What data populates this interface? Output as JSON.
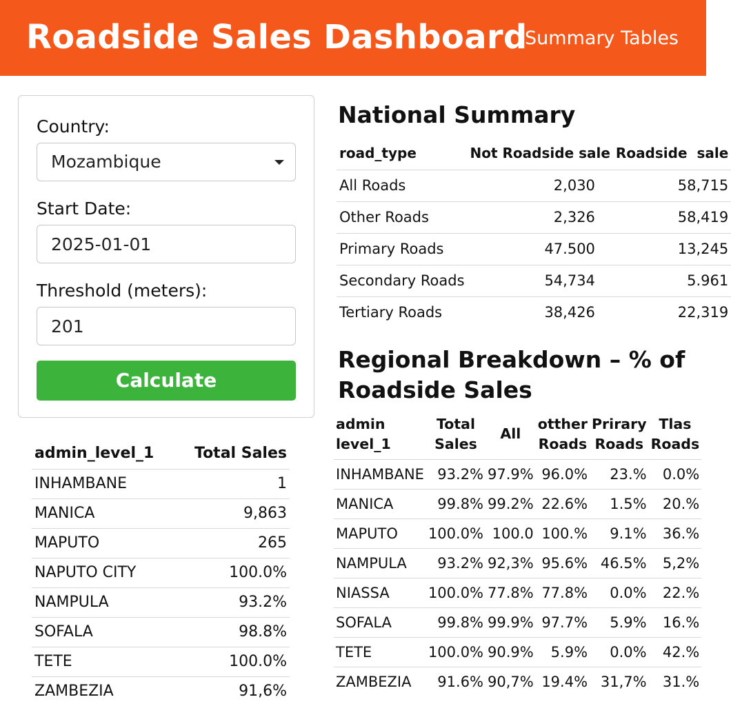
{
  "header": {
    "title": "Roadside Sales Dashboard",
    "link": "Summary Tables",
    "bg_color": "#f5581b"
  },
  "form": {
    "country_label": "Country:",
    "country_value": "Mozambique",
    "start_date_label": "Start Date:",
    "start_date_value": "2025-01-01",
    "threshold_label": "Threshold (meters):",
    "threshold_value": "201",
    "calculate_label": "Calculate",
    "button_color": "#3cb43c"
  },
  "admin_table": {
    "headers": [
      "admin_level_1",
      "Total Sales"
    ],
    "rows": [
      [
        "INHAMBANE",
        "1"
      ],
      [
        "MANICA",
        "9,863"
      ],
      [
        "MAPUTO",
        "265"
      ],
      [
        "NAPUTO CITY",
        "100.0%"
      ],
      [
        "NAMPULA",
        "93.2%"
      ],
      [
        "SOFALA",
        "98.8%"
      ],
      [
        "TETE",
        "100.0%"
      ],
      [
        "ZAMBEZIA",
        "91,6%"
      ]
    ]
  },
  "national": {
    "title": "National Summary",
    "headers": [
      "road_type",
      "Not Roadside sale",
      "Roadside  sale"
    ],
    "rows": [
      [
        "All Roads",
        "2,030",
        "58,715"
      ],
      [
        "Other Roads",
        "2,326",
        "58,419"
      ],
      [
        "Primary Roads",
        "47.500",
        "13,245"
      ],
      [
        "Secondary Roads",
        "54,734",
        "5.961"
      ],
      [
        "Tertiary Roads",
        "38,426",
        "22,319"
      ]
    ]
  },
  "regional": {
    "title_line1": "Regional Breakdown – % of",
    "title_line2": "Roadside Sales",
    "headers": [
      [
        "admin",
        "level_1"
      ],
      [
        "Total Sales"
      ],
      [
        "All"
      ],
      [
        "otther",
        "Roads"
      ],
      [
        "Prirary",
        "Roads"
      ],
      [
        "Tlas",
        "Roads"
      ]
    ],
    "rows": [
      [
        "INHAMBANE",
        "93.2%",
        "97.9%",
        "96.0%",
        "23.%",
        "0.0%"
      ],
      [
        "MANICA",
        "99.8%",
        "99.2%",
        "22.6%",
        "1.5%",
        "20.%"
      ],
      [
        "MAPUTO",
        "100.0%",
        "100.0",
        "100.%",
        "9.1%",
        "36.%"
      ],
      [
        "NAMPULA",
        "93.2%",
        "92,3%",
        "95.6%",
        "46.5%",
        "5,2%"
      ],
      [
        "NIASSA",
        "100.0%",
        "77.8%",
        "77.8%",
        "0.0%",
        "22.%"
      ],
      [
        "SOFALA",
        "99.8%",
        "99.9%",
        "97.7%",
        "5.9%",
        "16.%"
      ],
      [
        "TETE",
        "100.0%",
        "90.9%",
        "5.9%",
        "0.0%",
        "42.%"
      ],
      [
        "ZAMBEZIA",
        "91.6%",
        "90,7%",
        "19.4%",
        "31,7%",
        "31.%"
      ]
    ]
  }
}
